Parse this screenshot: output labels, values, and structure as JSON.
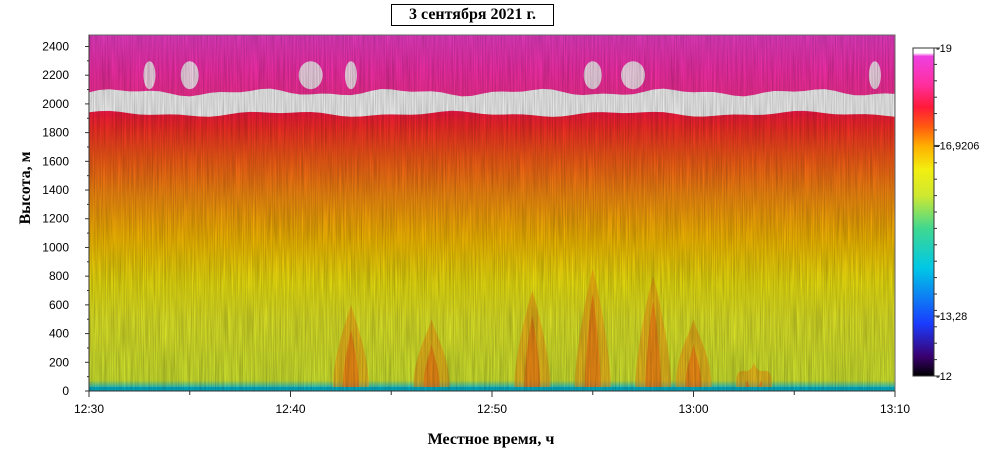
{
  "chart_data": {
    "type": "heatmap",
    "title": "3 сентября 2021 г.",
    "xlabel": "Местное время, ч",
    "ylabel": "Высота, м",
    "x_ticks": [
      "12:30",
      "12:40",
      "12:50",
      "13:00",
      "13:10"
    ],
    "x_range": [
      "12:30",
      "13:10"
    ],
    "y_ticks": [
      0,
      200,
      400,
      600,
      800,
      1000,
      1200,
      1400,
      1600,
      1800,
      2000,
      2200,
      2400
    ],
    "ylim": [
      0,
      2480
    ],
    "colorbar": {
      "min": -12,
      "max": -19,
      "tick_labels": [
        "-19",
        "-16,9206",
        "-13,28",
        "-12"
      ],
      "tick_values": [
        -19,
        -16.9206,
        -13.28,
        -12
      ],
      "colors": [
        "#000000",
        "#3a0070",
        "#1a3cff",
        "#00c8e6",
        "#40d890",
        "#cfe830",
        "#f2ee10",
        "#ffb000",
        "#ff5a10",
        "#ff1a3a",
        "#ff2fa0",
        "#ee40e0",
        "#ffffff"
      ]
    },
    "cloud_layer": {
      "base_m": 1930,
      "top_m": 2080
    },
    "convective_plumes": [
      {
        "time": "12:43",
        "top_m": 600
      },
      {
        "time": "12:47",
        "top_m": 500
      },
      {
        "time": "12:52",
        "top_m": 700
      },
      {
        "time": "12:55",
        "top_m": 850
      },
      {
        "time": "12:58",
        "top_m": 800
      },
      {
        "time": "13:00",
        "top_m": 500
      },
      {
        "time": "13:03",
        "top_m": 200
      }
    ],
    "grid": false
  }
}
